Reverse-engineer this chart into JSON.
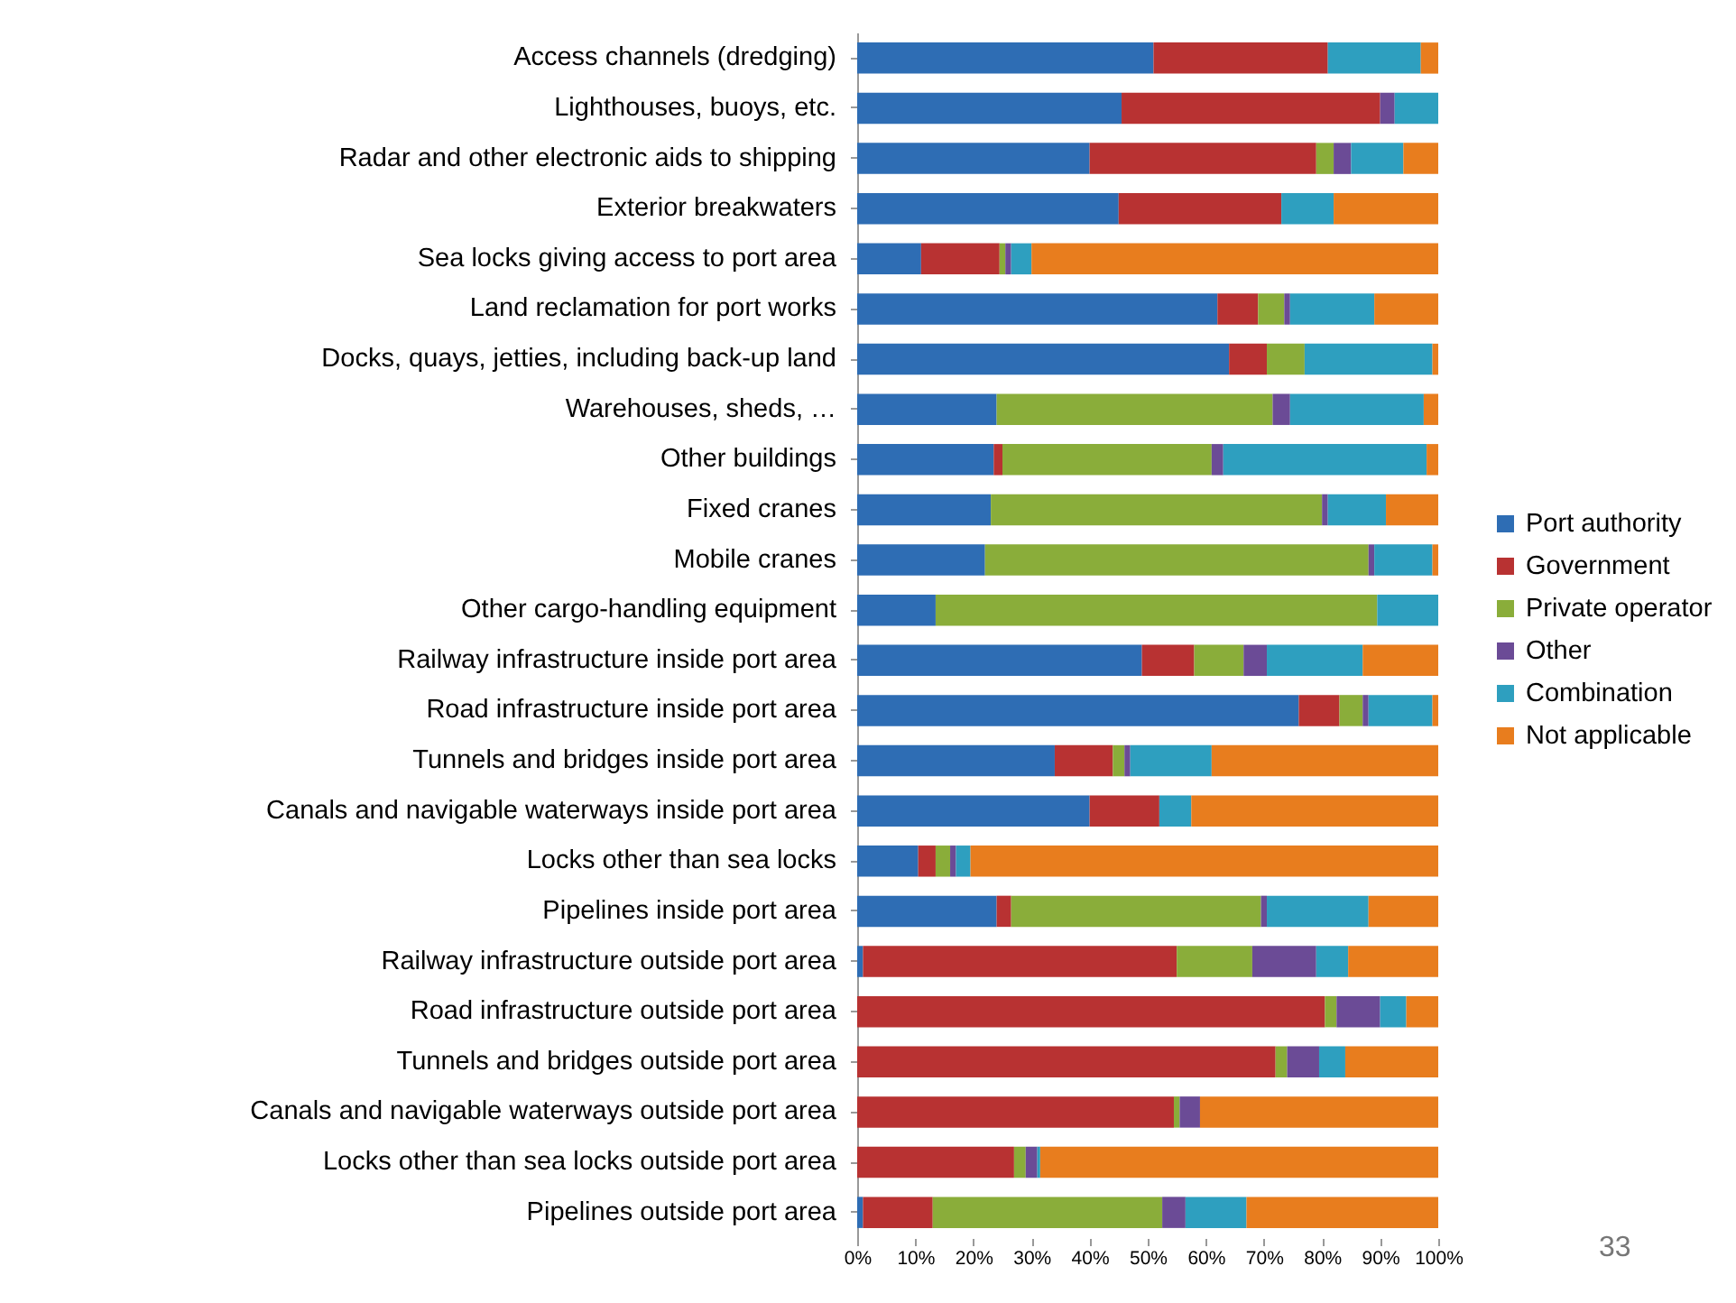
{
  "chart_data": {
    "type": "bar",
    "orientation": "horizontal",
    "stacked": true,
    "categories": [
      "Access channels (dredging)",
      "Lighthouses, buoys, etc.",
      "Radar and other electronic aids to shipping",
      "Exterior breakwaters",
      "Sea locks giving access to port area",
      "Land reclamation for port works",
      "Docks, quays, jetties, including back-up land",
      "Warehouses, sheds, …",
      "Other buildings",
      "Fixed cranes",
      "Mobile cranes",
      "Other cargo-handling equipment",
      "Railway infrastructure inside port area",
      "Road infrastructure inside port area",
      "Tunnels and bridges inside port area",
      "Canals and navigable waterways inside port area",
      "Locks other than sea locks",
      "Pipelines inside port area",
      "Railway infrastructure outside port area",
      "Road infrastructure outside port area",
      "Tunnels and bridges outside port area",
      "Canals and navigable waterways outside port area",
      "Locks other than sea locks outside port area",
      "Pipelines outside port area"
    ],
    "series": [
      {
        "name": "Port authority",
        "color": "#2e6db4",
        "values": [
          51,
          45.5,
          40,
          45,
          11,
          62,
          64,
          24,
          23.5,
          23,
          22,
          13.5,
          49,
          76,
          34,
          40,
          10.5,
          24,
          1,
          0,
          0,
          0,
          0,
          1
        ]
      },
      {
        "name": "Government",
        "color": "#b83232",
        "values": [
          30,
          44.5,
          39,
          28,
          13.5,
          7,
          6.5,
          0,
          1.5,
          0,
          0,
          0,
          9,
          7,
          10,
          12,
          3,
          2.5,
          54,
          80.5,
          72,
          54.5,
          27,
          12
        ]
      },
      {
        "name": "Private operator",
        "color": "#8aad3a",
        "values": [
          0,
          0,
          3,
          0,
          1,
          4.5,
          6.5,
          47.5,
          36,
          57,
          66,
          76,
          8.5,
          4,
          2,
          0,
          2.5,
          43,
          13,
          2,
          2,
          1,
          2,
          39.5
        ]
      },
      {
        "name": "Other",
        "color": "#6b4b96",
        "values": [
          0,
          2.5,
          3,
          0,
          1,
          1,
          0,
          3,
          2,
          1,
          1,
          0,
          4,
          1,
          1,
          0,
          1,
          1,
          11,
          7.5,
          5.5,
          3.5,
          2,
          4
        ]
      },
      {
        "name": "Combination",
        "color": "#2e9fbf",
        "values": [
          16,
          7.5,
          9,
          9,
          3.5,
          14.5,
          22,
          23,
          35,
          10,
          10,
          10.5,
          16.5,
          11,
          14,
          5.5,
          2.5,
          17.5,
          5.5,
          4.5,
          4.5,
          0,
          0.5,
          10.5
        ]
      },
      {
        "name": "Not applicable",
        "color": "#e87d1e",
        "values": [
          3,
          0,
          6,
          18,
          70,
          11,
          1,
          2.5,
          2,
          9,
          1,
          0,
          13,
          1,
          39,
          42.5,
          80.5,
          12,
          15.5,
          5.5,
          16,
          41,
          68.5,
          33
        ]
      }
    ],
    "xlim": [
      0,
      100
    ],
    "xticks": [
      {
        "value": 0,
        "label": "0%"
      },
      {
        "value": 10,
        "label": "10%"
      },
      {
        "value": 20,
        "label": "20%"
      },
      {
        "value": 30,
        "label": "30%"
      },
      {
        "value": 40,
        "label": "40%"
      },
      {
        "value": 50,
        "label": "50%"
      },
      {
        "value": 60,
        "label": "60%"
      },
      {
        "value": 70,
        "label": "70%"
      },
      {
        "value": 80,
        "label": "80%"
      },
      {
        "value": 90,
        "label": "90%"
      },
      {
        "value": 100,
        "label": "100%"
      }
    ],
    "grid": false,
    "legend": "right",
    "annotations": [
      "33"
    ]
  }
}
